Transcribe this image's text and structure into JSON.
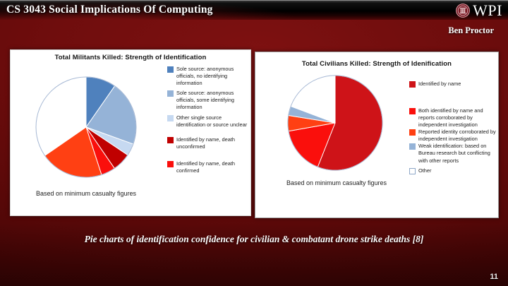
{
  "header": {
    "title": "CS 3043 Social Implications Of Computing",
    "logo_wordmark": "WPI",
    "logo_icon": "wpi-seal",
    "author": "Ben Proctor"
  },
  "footer": {
    "caption": "Pie charts of identification confidence for civilian & combatant drone strike deaths [8]",
    "page_number": "11"
  },
  "colors": {
    "slide_background": "#5d0909",
    "header_bar": "#000000",
    "panel_background": "#ffffff",
    "pie_rim": "#a6b8d4"
  },
  "chart_data": [
    {
      "type": "pie",
      "title": "Total Militants Killed: Strength of Identification",
      "note": "Based on minimum casualty figures",
      "legend_position": "right",
      "slices": [
        {
          "label": "Sole source: anonymous officials, no  identifying information",
          "value": 9.7,
          "color": "#4f81bd"
        },
        {
          "label": "Sole source: anonymous officials, some identifying information",
          "value": 20.8,
          "color": "#95b3d7"
        },
        {
          "label": "Other single source identification or source unclear",
          "value": 3.9,
          "color": "#c6d9f1"
        },
        {
          "label": "Identified by name, death unconfirmed",
          "value": 6.0,
          "color": "#c00000"
        },
        {
          "label": "Identified by name, death confirmed",
          "value": 4.6,
          "color": "#fa0f0c"
        },
        {
          "label": "",
          "value": 20.4,
          "color": "#ff4013"
        },
        {
          "label": "",
          "value": 34.6,
          "color": "#ffffff"
        }
      ]
    },
    {
      "type": "pie",
      "title": "Total Civilians Killed: Strength of Idenification",
      "note": "Based on minimum casualty figures",
      "legend_position": "right",
      "slices": [
        {
          "label": "Identified by name",
          "value": 56.0,
          "color": "#ce1318"
        },
        {
          "label": "Both identified by name and reports corroborated by independent investigation",
          "value": 16.2,
          "color": "#fa0f0c"
        },
        {
          "label": "Reported identity corroborated by independent investigation",
          "value": 5.3,
          "color": "#ff4013"
        },
        {
          "label": "Weak identification: based on Bureau research but conflicting with other reports",
          "value": 3.2,
          "color": "#95b3d7"
        },
        {
          "label": "Other",
          "value": 19.3,
          "color": "#ffffff"
        }
      ]
    }
  ]
}
